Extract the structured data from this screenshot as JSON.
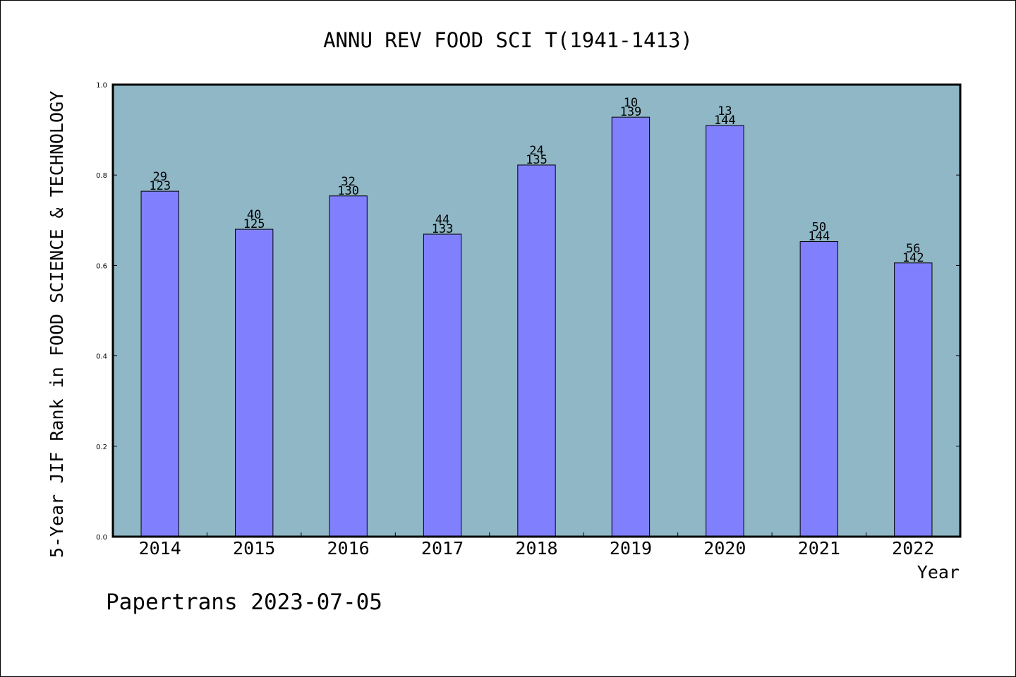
{
  "chart_data": {
    "type": "bar",
    "title": "ANNU REV FOOD SCI T(1941-1413)",
    "xlabel": "Year",
    "ylabel": "5-Year JIF Rank in FOOD SCIENCE & TECHNOLOGY",
    "ylim": [
      0,
      1.0
    ],
    "yticks": [
      "0.0",
      "0.2",
      "0.4",
      "0.6",
      "0.8",
      "1.0"
    ],
    "categories": [
      "2014",
      "2015",
      "2016",
      "2017",
      "2018",
      "2019",
      "2020",
      "2021",
      "2022"
    ],
    "values": [
      0.7642,
      0.68,
      0.7538,
      0.6692,
      0.8222,
      0.928,
      0.9097,
      0.6528,
      0.6056
    ],
    "rank": [
      "29",
      "40",
      "32",
      "44",
      "24",
      "10",
      "13",
      "50",
      "56"
    ],
    "total": [
      "123",
      "125",
      "130",
      "133",
      "135",
      "139",
      "144",
      "144",
      "142"
    ],
    "grid": false,
    "colors": {
      "plot_bg": "#8fb7c6",
      "bar": "#8080ff",
      "bar_edge": "#000000"
    }
  },
  "footer": {
    "credit": "Papertrans 2023-07-05"
  }
}
